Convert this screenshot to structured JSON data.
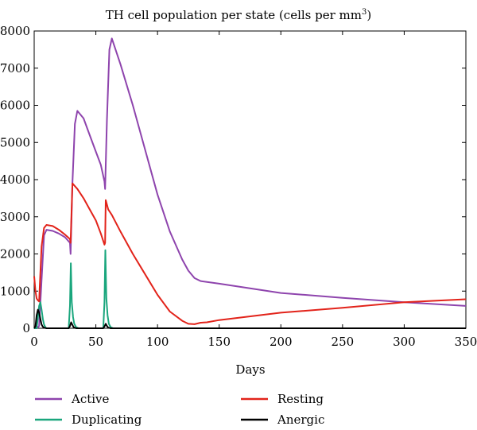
{
  "chart_data": {
    "type": "line",
    "title": "TH cell population per state (cells per mm",
    "title_superscript": "3",
    "title_suffix": ")",
    "xlabel": "Days",
    "ylabel": "",
    "xlim": [
      0,
      350
    ],
    "ylim": [
      0,
      8000
    ],
    "xticks": [
      0,
      50,
      100,
      150,
      200,
      250,
      300,
      350
    ],
    "yticks": [
      0,
      1000,
      2000,
      3000,
      4000,
      5000,
      6000,
      7000,
      8000
    ],
    "grid": false,
    "legend_position": "bottom",
    "series": [
      {
        "name": "Active",
        "color": "#8e44ad",
        "x": [
          0,
          2,
          4,
          6,
          8,
          10,
          15,
          20,
          25,
          29,
          29.5,
          31,
          33,
          35,
          40,
          45,
          50,
          54,
          57,
          57.5,
          59,
          61,
          63,
          70,
          80,
          90,
          100,
          110,
          120,
          125,
          130,
          135,
          150,
          200,
          250,
          300,
          350
        ],
        "y": [
          0,
          0,
          60,
          1300,
          2500,
          2650,
          2620,
          2550,
          2450,
          2300,
          2000,
          3900,
          5500,
          5850,
          5650,
          5200,
          4750,
          4400,
          3950,
          3750,
          5600,
          7500,
          7800,
          7100,
          6000,
          4800,
          3600,
          2600,
          1850,
          1550,
          1350,
          1270,
          1200,
          950,
          820,
          700,
          600
        ]
      },
      {
        "name": "Resting",
        "color": "#e2231a",
        "x": [
          0,
          1,
          2,
          3,
          4,
          5,
          6,
          8,
          10,
          15,
          20,
          25,
          29,
          29.5,
          31,
          35,
          40,
          45,
          50,
          54,
          57,
          57.5,
          58,
          60,
          63,
          70,
          80,
          90,
          100,
          110,
          120,
          125,
          130,
          135,
          140,
          150,
          200,
          250,
          300,
          350
        ],
        "y": [
          1400,
          1000,
          800,
          750,
          720,
          1500,
          2200,
          2700,
          2780,
          2750,
          2650,
          2520,
          2400,
          2300,
          3900,
          3750,
          3500,
          3200,
          2900,
          2550,
          2250,
          2300,
          3450,
          3200,
          3050,
          2600,
          2000,
          1450,
          900,
          450,
          200,
          120,
          110,
          150,
          160,
          220,
          420,
          550,
          700,
          780
        ]
      },
      {
        "name": "Duplicating",
        "color": "#1aa67d",
        "x": [
          0,
          2,
          3,
          4,
          5,
          6,
          7,
          8,
          9,
          10,
          28,
          29,
          29.7,
          30.5,
          31.5,
          32.5,
          34,
          36,
          56,
          57,
          57.7,
          58.5,
          59.5,
          60.5,
          62,
          64,
          350
        ],
        "y": [
          0,
          0,
          300,
          600,
          700,
          500,
          250,
          100,
          30,
          0,
          0,
          600,
          1750,
          700,
          300,
          120,
          30,
          0,
          0,
          700,
          2100,
          800,
          350,
          120,
          30,
          0,
          0
        ]
      },
      {
        "name": "Anergic",
        "color": "#000000",
        "x": [
          0,
          1,
          2,
          3,
          4,
          5,
          6,
          7,
          8,
          10,
          28,
          29,
          30,
          31,
          32,
          34,
          56,
          57,
          58,
          59,
          60,
          62,
          350
        ],
        "y": [
          0,
          50,
          350,
          500,
          420,
          250,
          100,
          40,
          15,
          0,
          0,
          60,
          160,
          90,
          30,
          0,
          0,
          50,
          120,
          60,
          20,
          0,
          0
        ]
      }
    ]
  }
}
